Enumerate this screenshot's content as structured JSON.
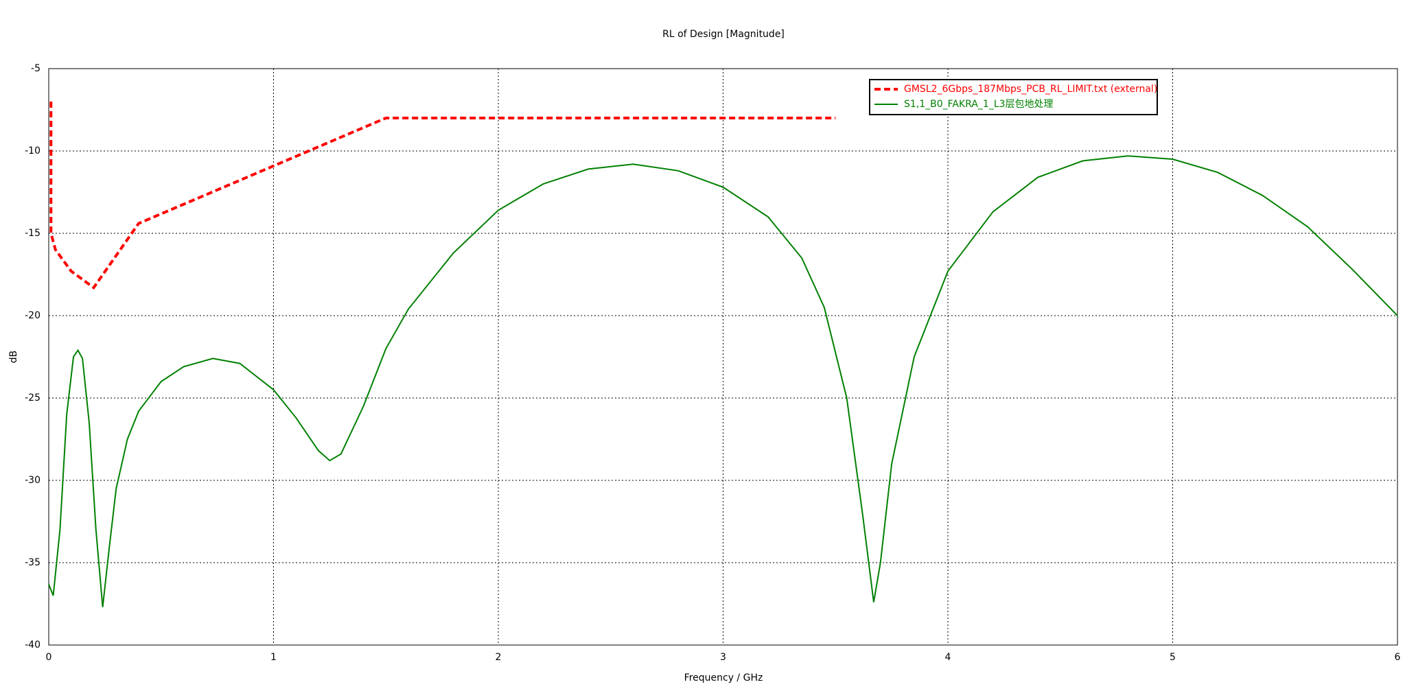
{
  "chart_data": {
    "type": "line",
    "title": "RL of Design [Magnitude]",
    "x_label": "Frequency / GHz",
    "y_label": "dB",
    "xlim": [
      0,
      6
    ],
    "ylim": [
      -40,
      -5
    ],
    "xticks": [
      0,
      1,
      2,
      3,
      4,
      5,
      6
    ],
    "yticks": [
      -5,
      -10,
      -15,
      -20,
      -25,
      -30,
      -35,
      -40
    ],
    "grid": true,
    "legend": "upper-right",
    "series": [
      {
        "name": "GMSL2_6Gbps_187Mbps_PCB_RL_LIMIT.txt (external)",
        "color": "#ff0000",
        "dashed": true,
        "x": [
          0.01,
          0.01,
          0.03,
          0.1,
          0.2,
          0.4,
          1.5,
          3.5
        ],
        "values": [
          -7,
          -15,
          -16,
          -17.3,
          -18.3,
          -14.4,
          -8,
          -8
        ]
      },
      {
        "name": "S1,1_B0_FAKRA_1_L3层包地处理",
        "color": "#008000",
        "dashed": false,
        "x": [
          0,
          0.02,
          0.05,
          0.08,
          0.11,
          0.13,
          0.15,
          0.18,
          0.21,
          0.24,
          0.27,
          0.3,
          0.35,
          0.4,
          0.5,
          0.6,
          0.73,
          0.85,
          1.0,
          1.1,
          1.2,
          1.25,
          1.3,
          1.4,
          1.5,
          1.6,
          1.8,
          2.0,
          2.2,
          2.4,
          2.6,
          2.8,
          3.0,
          3.2,
          3.35,
          3.45,
          3.55,
          3.62,
          3.67,
          3.7,
          3.75,
          3.85,
          4.0,
          4.2,
          4.4,
          4.6,
          4.8,
          5.0,
          5.2,
          5.4,
          5.6,
          5.8,
          6.0
        ],
        "values": [
          -36.3,
          -37,
          -33,
          -26,
          -22.5,
          -22.1,
          -22.6,
          -26.5,
          -33,
          -37.7,
          -34,
          -30.5,
          -27.5,
          -25.8,
          -24,
          -23.1,
          -22.6,
          -22.9,
          -24.5,
          -26.2,
          -28.2,
          -28.8,
          -28.4,
          -25.5,
          -22,
          -19.6,
          -16.2,
          -13.6,
          -12,
          -11.1,
          -10.8,
          -11.2,
          -12.2,
          -14,
          -16.5,
          -19.5,
          -25,
          -32,
          -37.4,
          -35,
          -29,
          -22.5,
          -17.3,
          -13.7,
          -11.6,
          -10.6,
          -10.3,
          -10.5,
          -11.3,
          -12.7,
          -14.6,
          -17.2,
          -20
        ]
      }
    ]
  }
}
